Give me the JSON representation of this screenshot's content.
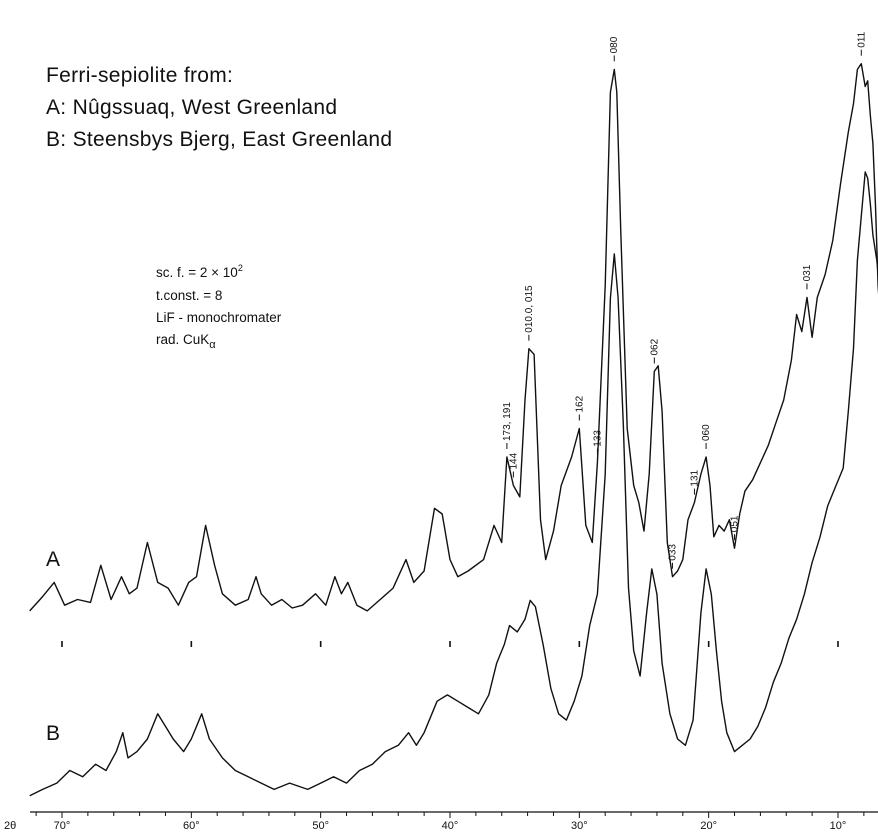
{
  "chart_data": {
    "type": "line",
    "title": "Ferri-sepiolite from:",
    "legend": [
      {
        "label": "A: Nûgssuaq, West Greenland"
      },
      {
        "label": "B: Steensbys Bjerg, East Greenland"
      }
    ],
    "params": {
      "scale_factor_prefix": "sc. f. = 2 × 10",
      "scale_factor_exp": "2",
      "time_constant": "t.const. = 8",
      "monochromator": "LiF - monochromater",
      "radiation_prefix": "rad. CuK",
      "radiation_sub": "α"
    },
    "xlabel": "2θ",
    "x_ticks": [
      {
        "value": 70,
        "label": "70°"
      },
      {
        "value": 60,
        "label": "60°"
      },
      {
        "value": 50,
        "label": "50°"
      },
      {
        "value": 40,
        "label": "40°"
      },
      {
        "value": 30,
        "label": "30°"
      },
      {
        "value": 20,
        "label": "20°"
      },
      {
        "value": 10,
        "label": "10°"
      }
    ],
    "xlim": [
      72.5,
      6.2
    ],
    "ylim": [
      0,
      1
    ],
    "grid": false,
    "reference_marks_2theta": [
      70,
      60,
      50,
      40,
      30,
      20,
      10
    ],
    "series": [
      {
        "name": "A",
        "x": [
          72.5,
          71.5,
          70.6,
          69.8,
          68.8,
          67.8,
          67.0,
          66.2,
          65.4,
          64.8,
          64.2,
          63.4,
          62.6,
          61.8,
          61.0,
          60.2,
          59.6,
          58.9,
          58.2,
          57.6,
          56.6,
          55.6,
          55.0,
          54.6,
          53.8,
          53.0,
          52.2,
          51.4,
          50.4,
          49.6,
          48.9,
          48.4,
          47.9,
          47.2,
          46.4,
          45.4,
          44.4,
          43.4,
          42.8,
          42.0,
          41.2,
          40.6,
          40.0,
          39.4,
          38.6,
          37.4,
          36.6,
          36.0,
          35.6,
          35.1,
          34.6,
          34.2,
          33.9,
          33.5,
          33.0,
          32.6,
          32.0,
          31.4,
          30.6,
          30.0,
          29.5,
          29.0,
          28.6,
          28.0,
          27.6,
          27.3,
          27.1,
          26.8,
          26.3,
          25.8,
          25.4,
          25.0,
          24.6,
          24.2,
          23.9,
          23.6,
          23.2,
          22.8,
          22.4,
          22.0,
          21.6,
          21.1,
          20.6,
          20.2,
          19.9,
          19.6,
          19.2,
          18.8,
          18.4,
          18.0,
          17.6,
          17.2,
          16.6,
          16.0,
          15.4,
          14.8,
          14.2,
          13.6,
          13.2,
          12.8,
          12.4,
          12.0,
          11.6,
          11.0,
          10.4,
          9.8,
          9.2,
          8.8,
          8.5,
          8.2,
          7.9,
          7.7,
          7.5,
          7.3,
          7.1,
          6.9,
          6.6,
          6.2
        ],
        "y": [
          0.03,
          0.055,
          0.08,
          0.04,
          0.05,
          0.045,
          0.11,
          0.05,
          0.09,
          0.06,
          0.07,
          0.15,
          0.08,
          0.07,
          0.04,
          0.08,
          0.09,
          0.18,
          0.11,
          0.06,
          0.04,
          0.05,
          0.09,
          0.06,
          0.04,
          0.05,
          0.035,
          0.04,
          0.06,
          0.04,
          0.09,
          0.06,
          0.08,
          0.04,
          0.03,
          0.05,
          0.07,
          0.12,
          0.08,
          0.1,
          0.21,
          0.2,
          0.12,
          0.09,
          0.1,
          0.12,
          0.18,
          0.15,
          0.3,
          0.25,
          0.23,
          0.4,
          0.49,
          0.48,
          0.19,
          0.12,
          0.17,
          0.25,
          0.3,
          0.35,
          0.18,
          0.15,
          0.29,
          0.6,
          0.94,
          0.98,
          0.94,
          0.7,
          0.35,
          0.25,
          0.22,
          0.17,
          0.27,
          0.45,
          0.46,
          0.38,
          0.15,
          0.09,
          0.1,
          0.12,
          0.19,
          0.22,
          0.27,
          0.3,
          0.25,
          0.16,
          0.18,
          0.17,
          0.19,
          0.14,
          0.2,
          0.24,
          0.26,
          0.29,
          0.32,
          0.36,
          0.4,
          0.47,
          0.55,
          0.52,
          0.58,
          0.51,
          0.58,
          0.62,
          0.68,
          0.78,
          0.87,
          0.92,
          0.98,
          0.99,
          0.95,
          0.96,
          0.9,
          0.85,
          0.74,
          0.6,
          0.5,
          0.47
        ],
        "peak_labels": [
          {
            "x": 35.6,
            "label": "173, 191"
          },
          {
            "x": 35.1,
            "label": "144"
          },
          {
            "x": 33.9,
            "label": "010.0, 015"
          },
          {
            "x": 30.0,
            "label": "162"
          },
          {
            "x": 28.6,
            "label": "133"
          },
          {
            "x": 27.3,
            "label": "080"
          },
          {
            "x": 24.2,
            "label": "062"
          },
          {
            "x": 22.8,
            "label": "033"
          },
          {
            "x": 21.1,
            "label": "131"
          },
          {
            "x": 20.2,
            "label": "060"
          },
          {
            "x": 18.0,
            "label": "051"
          },
          {
            "x": 12.4,
            "label": "031"
          },
          {
            "x": 8.2,
            "label": "011"
          }
        ]
      },
      {
        "name": "B",
        "x": [
          72.5,
          71.5,
          70.4,
          69.4,
          68.4,
          67.4,
          66.6,
          65.8,
          65.3,
          64.9,
          64.2,
          63.4,
          62.6,
          62.0,
          61.4,
          60.6,
          60.0,
          59.2,
          58.6,
          57.6,
          56.6,
          55.6,
          54.6,
          53.6,
          52.4,
          51.0,
          50.0,
          49.0,
          48.0,
          47.0,
          46.0,
          45.0,
          44.0,
          43.2,
          42.6,
          42.0,
          41.0,
          40.2,
          39.4,
          38.6,
          37.8,
          37.0,
          36.4,
          35.8,
          35.4,
          34.8,
          34.2,
          33.8,
          33.4,
          32.8,
          32.2,
          31.6,
          31.0,
          30.4,
          29.8,
          29.2,
          28.6,
          28.0,
          27.6,
          27.3,
          27.0,
          26.6,
          26.2,
          25.8,
          25.3,
          24.8,
          24.4,
          24.0,
          23.6,
          23.0,
          22.4,
          21.8,
          21.2,
          20.6,
          20.2,
          19.8,
          19.4,
          19.0,
          18.6,
          18.0,
          17.4,
          16.8,
          16.2,
          15.6,
          15.0,
          14.4,
          13.8,
          13.2,
          12.6,
          12.0,
          11.4,
          10.8,
          10.2,
          9.6,
          9.2,
          8.8,
          8.5,
          8.2,
          7.9,
          7.7,
          7.5,
          7.3,
          7.0,
          6.7,
          6.4,
          6.2
        ],
        "y": [
          0.01,
          0.02,
          0.03,
          0.05,
          0.04,
          0.06,
          0.05,
          0.08,
          0.11,
          0.07,
          0.08,
          0.1,
          0.14,
          0.12,
          0.1,
          0.08,
          0.1,
          0.14,
          0.1,
          0.07,
          0.05,
          0.04,
          0.03,
          0.02,
          0.03,
          0.02,
          0.03,
          0.04,
          0.03,
          0.05,
          0.06,
          0.08,
          0.09,
          0.11,
          0.09,
          0.11,
          0.16,
          0.17,
          0.16,
          0.15,
          0.14,
          0.17,
          0.22,
          0.25,
          0.28,
          0.27,
          0.29,
          0.32,
          0.31,
          0.25,
          0.18,
          0.14,
          0.13,
          0.16,
          0.2,
          0.28,
          0.33,
          0.52,
          0.8,
          0.87,
          0.8,
          0.6,
          0.34,
          0.24,
          0.2,
          0.3,
          0.37,
          0.33,
          0.22,
          0.14,
          0.1,
          0.09,
          0.13,
          0.3,
          0.37,
          0.33,
          0.24,
          0.16,
          0.11,
          0.08,
          0.09,
          0.1,
          0.12,
          0.15,
          0.19,
          0.22,
          0.26,
          0.29,
          0.33,
          0.38,
          0.42,
          0.47,
          0.5,
          0.53,
          0.62,
          0.72,
          0.86,
          0.93,
          1.0,
          0.99,
          0.95,
          0.9,
          0.86,
          0.8,
          0.76,
          0.74
        ]
      }
    ]
  }
}
